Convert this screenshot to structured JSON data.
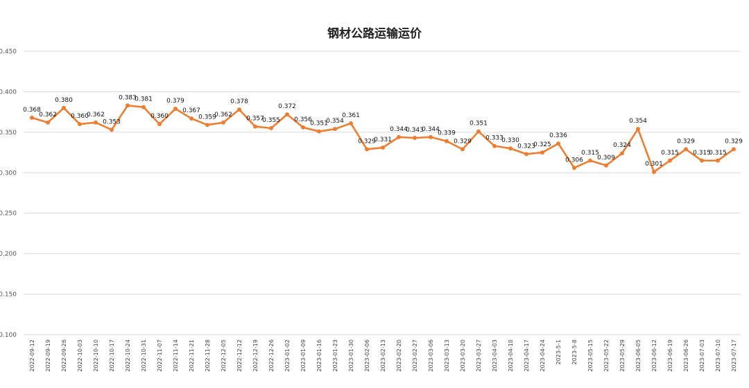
{
  "chart_data": {
    "type": "line",
    "title": "钢材公路运输运价",
    "xlabel": "",
    "ylabel": "",
    "ylim": [
      0.1,
      0.45
    ],
    "yticks": [
      "0.100",
      "0.150",
      "0.200",
      "0.250",
      "0.300",
      "0.350",
      "0.400",
      "0.450"
    ],
    "grid": true,
    "legend": "none",
    "line_color": "#ED7D31",
    "categories": [
      "2022-09-12",
      "2022-09-19",
      "2022-09-26",
      "2022-10-03",
      "2022-10-10",
      "2022-10-17",
      "2022-10-24",
      "2022-10-31",
      "2022-11-07",
      "2022-11-14",
      "2022-11-21",
      "2022-11-28",
      "2022-12-05",
      "2022-12-12",
      "2022-12-19",
      "2022-12-26",
      "2023-01-02",
      "2023-01-09",
      "2023-01-16",
      "2023-01-23",
      "2023-01-30",
      "2023-02-06",
      "2023-02-13",
      "2023-02-20",
      "2023-02-27",
      "2023-03-06",
      "2023-03-13",
      "2023-03-20",
      "2023-03-27",
      "2023-04-03",
      "2023-04-10",
      "2023-04-17",
      "2023-04-24",
      "2023-5-1",
      "2023-5-8",
      "2023-05-15",
      "2023-05-22",
      "2023-05-29",
      "2023-06-05",
      "2023-06-12",
      "2023-06-19",
      "2023-06-26",
      "2023-07-03",
      "2023-07-10",
      "2023-07-17"
    ],
    "values": [
      0.368,
      0.362,
      0.38,
      0.36,
      0.362,
      0.353,
      0.383,
      0.381,
      0.36,
      0.379,
      0.367,
      0.359,
      0.362,
      0.378,
      0.357,
      0.355,
      0.372,
      0.356,
      0.351,
      0.354,
      0.361,
      0.329,
      0.331,
      0.344,
      0.343,
      0.344,
      0.339,
      0.329,
      0.351,
      0.333,
      0.33,
      0.323,
      0.325,
      0.336,
      0.306,
      0.315,
      0.309,
      0.324,
      0.354,
      0.301,
      0.315,
      0.329,
      0.315,
      0.315,
      0.329
    ],
    "value_labels": [
      "0.368",
      "0.362",
      "0.380",
      "0.360",
      "0.362",
      "0.353",
      "0.383",
      "0.381",
      "0.360",
      "0.379",
      "0.367",
      "0.359",
      "0.362",
      "0.378",
      "0.357",
      "0.355",
      "0.372",
      "0.356",
      "0.351",
      "0.354",
      "0.361",
      "0.329",
      "0.331",
      "0.344",
      "0.343",
      "0.344",
      "0.339",
      "0.329",
      "0.351",
      "0.333",
      "0.330",
      "0.323",
      "0.325",
      "0.336",
      "0.306",
      "0.315",
      "0.309",
      "0.324",
      "0.354",
      "0.301",
      "0.315",
      "0.329",
      "0.315",
      "0.315",
      "0.329"
    ]
  }
}
